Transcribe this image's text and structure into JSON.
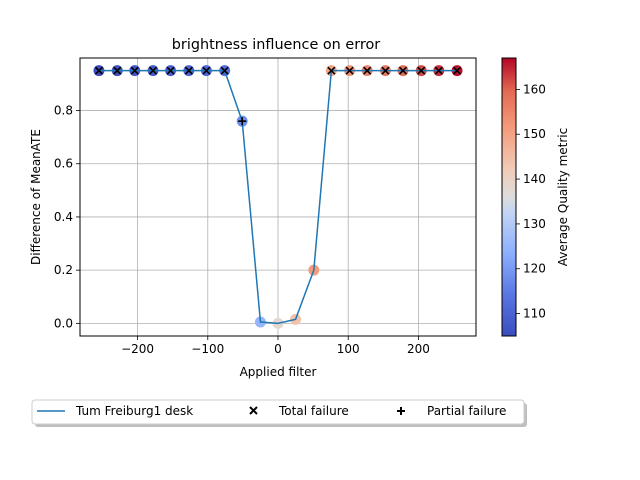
{
  "chart_data": {
    "type": "scatter",
    "title": "brightness influence on error",
    "xlabel": "Applied filter",
    "ylabel": "Difference of MeanATE",
    "xlim": [
      -282,
      282
    ],
    "ylim": [
      -0.0475,
      0.9975
    ],
    "xticks": [
      -200,
      -100,
      0,
      100,
      200
    ],
    "xtick_labels": [
      "−200",
      "−100",
      "0",
      "100",
      "200"
    ],
    "yticks": [
      0.0,
      0.2,
      0.4,
      0.6,
      0.8
    ],
    "ytick_labels": [
      "0.0",
      "0.2",
      "0.4",
      "0.6",
      "0.8"
    ],
    "grid": true,
    "series": [
      {
        "name": "Tum Freiburg1 desk",
        "color": "#1f77b4",
        "x": [
          -255,
          -229,
          -204,
          -178,
          -153,
          -127,
          -102,
          -76,
          -51,
          -25,
          0,
          25,
          51,
          76,
          102,
          127,
          153,
          178,
          204,
          229,
          255
        ],
        "y": [
          0.95,
          0.95,
          0.95,
          0.95,
          0.95,
          0.95,
          0.95,
          0.95,
          0.76,
          0.005,
          0.0,
          0.015,
          0.2,
          0.95,
          0.95,
          0.95,
          0.95,
          0.95,
          0.95,
          0.95,
          0.95
        ],
        "quality": [
          105,
          106,
          107,
          108,
          109,
          110,
          111,
          112,
          118,
          125,
          138,
          144,
          151,
          150,
          153,
          155,
          157,
          159,
          162,
          164,
          166
        ],
        "marker": [
          "total",
          "total",
          "total",
          "total",
          "total",
          "total",
          "total",
          "total",
          "partial",
          "none",
          "none",
          "none",
          "none",
          "total",
          "total",
          "total",
          "total",
          "total",
          "total",
          "total",
          "total"
        ]
      }
    ],
    "colorbar": {
      "label": "Average Quality metric",
      "colormap": "coolwarm",
      "min": 105,
      "max": 167,
      "ticks": [
        110,
        120,
        130,
        140,
        150,
        160
      ],
      "tick_labels": [
        "110",
        "120",
        "130",
        "140",
        "150",
        "160"
      ]
    },
    "legend": {
      "placement": "bottom",
      "entries": [
        {
          "label": "Tum Freiburg1 desk",
          "kind": "line"
        },
        {
          "label": "Total failure",
          "kind": "x-marker"
        },
        {
          "label": "Partial failure",
          "kind": "plus-marker"
        }
      ]
    }
  }
}
